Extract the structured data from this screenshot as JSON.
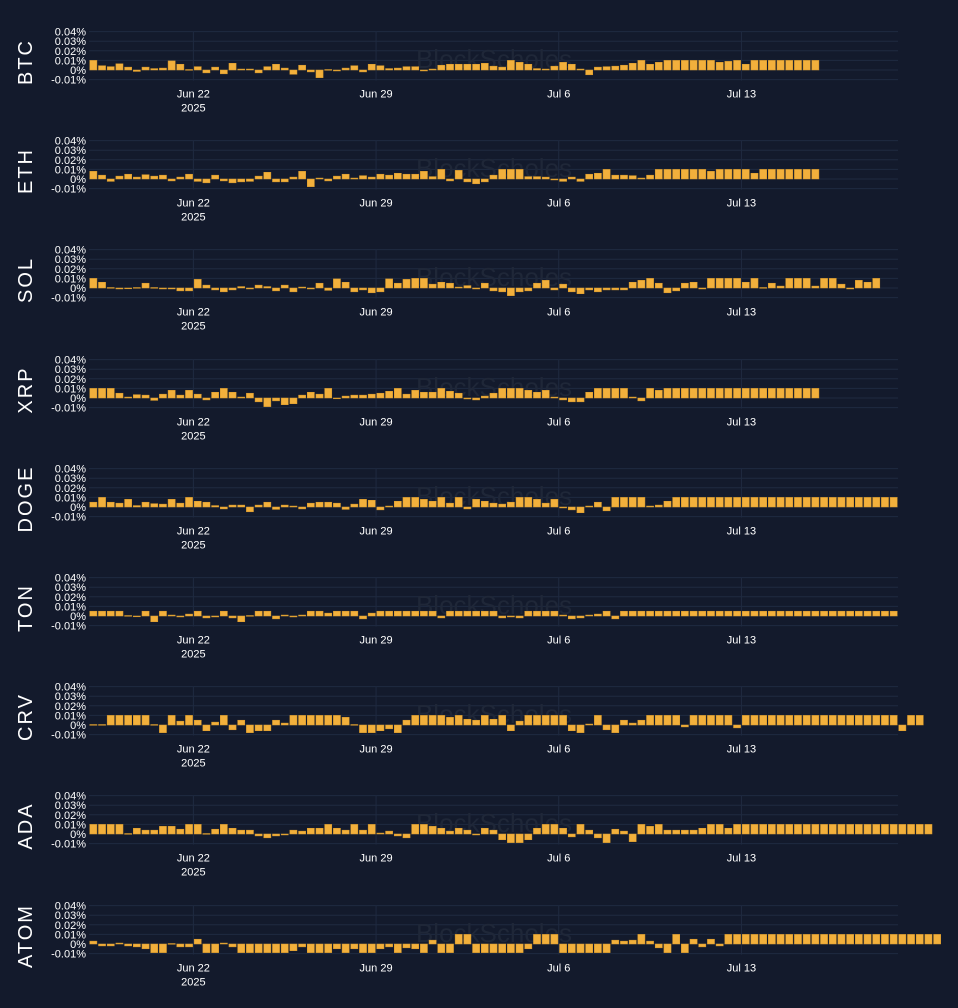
{
  "watermark": "BlockScholes",
  "colors": {
    "background": "#131a2c",
    "bar": "#f2b03c",
    "bar_edge": "#d99a2b",
    "grid": "#1f2a40",
    "text": "#ffffff"
  },
  "chart_data": {
    "type": "bar",
    "x_start": "2025-06-18",
    "x_step_hours": 8,
    "x_end": "2025-07-19",
    "x_ticks": [
      {
        "date": "2025-06-22",
        "label": "Jun 22",
        "sublabel": "2025"
      },
      {
        "date": "2025-06-29",
        "label": "Jun 29",
        "sublabel": ""
      },
      {
        "date": "2025-07-06",
        "label": "Jul 6",
        "sublabel": ""
      },
      {
        "date": "2025-07-13",
        "label": "Jul 13",
        "sublabel": ""
      }
    ],
    "y_ticks": [
      "0.04%",
      "0.03%",
      "0.02%",
      "0.01%",
      "0%",
      "-0.01%"
    ],
    "ylim": [
      -0.012,
      0.04
    ],
    "ylabel_unit": "%",
    "panels": [
      {
        "name": "BTC",
        "values": [
          0.01,
          0.0045,
          0.0035,
          0.0065,
          0.003,
          -0.0015,
          0.003,
          0.0015,
          0.002,
          0.0095,
          0.006,
          0.0005,
          0.0035,
          -0.003,
          0.003,
          -0.004,
          0.007,
          0.001,
          0.001,
          -0.003,
          0.0035,
          0.006,
          0.002,
          -0.0045,
          0.005,
          -0.002,
          -0.008,
          0.0005,
          -0.001,
          0.002,
          0.0045,
          -0.002,
          0.006,
          0.0045,
          0.0015,
          0.002,
          0.0035,
          0.0035,
          -0.001,
          0.001,
          0.005,
          0.006,
          0.006,
          0.006,
          0.006,
          0.007,
          0.004,
          0.003,
          0.01,
          0.008,
          0.006,
          0.0015,
          0.001,
          0.004,
          0.008,
          0.006,
          0.001,
          -0.005,
          0.003,
          0.0035,
          0.004,
          0.005,
          0.007,
          0.01,
          0.006,
          0.008,
          0.01,
          0.01,
          0.01,
          0.01,
          0.01,
          0.01,
          0.008,
          0.009,
          0.01,
          0.006,
          0.01,
          0.01,
          0.01,
          0.01,
          0.01,
          0.01,
          0.01,
          0.01
        ]
      },
      {
        "name": "ETH",
        "values": [
          0.008,
          0.004,
          -0.0025,
          0.003,
          0.005,
          0.002,
          0.0045,
          0.003,
          0.004,
          -0.002,
          0.002,
          0.005,
          -0.0025,
          -0.004,
          0.004,
          -0.002,
          -0.004,
          -0.003,
          -0.0025,
          0.003,
          0.007,
          -0.003,
          -0.003,
          0.002,
          0.008,
          -0.008,
          0.001,
          -0.002,
          0.003,
          0.005,
          0.001,
          0.0035,
          0.002,
          0.005,
          0.004,
          0.006,
          0.005,
          0.005,
          0.008,
          0.0025,
          0.01,
          -0.002,
          0.009,
          -0.003,
          -0.005,
          -0.003,
          0.004,
          0.01,
          0.01,
          0.01,
          0.0025,
          0.0025,
          0.002,
          -0.001,
          -0.0025,
          0.002,
          -0.0025,
          0.005,
          0.006,
          0.01,
          0.004,
          0.004,
          0.0035,
          0.001,
          0.004,
          0.01,
          0.01,
          0.01,
          0.01,
          0.01,
          0.01,
          0.008,
          0.01,
          0.01,
          0.01,
          0.01,
          0.006,
          0.01,
          0.01,
          0.01,
          0.01,
          0.01,
          0.01,
          0.01
        ]
      },
      {
        "name": "SOL",
        "values": [
          0.01,
          0.006,
          0.0005,
          -0.001,
          -0.0005,
          0.0005,
          0.005,
          0.0005,
          -0.001,
          -0.001,
          -0.003,
          -0.003,
          0.009,
          0.003,
          -0.002,
          -0.004,
          -0.002,
          0.0015,
          -0.001,
          0.003,
          0.0015,
          -0.003,
          0.003,
          -0.004,
          0.001,
          -0.001,
          0.005,
          -0.0025,
          0.0095,
          0.006,
          -0.004,
          -0.002,
          -0.005,
          -0.004,
          0.0095,
          0.005,
          0.009,
          0.01,
          0.01,
          0.004,
          0.006,
          0.005,
          0.001,
          0.0025,
          -0.001,
          0.005,
          -0.003,
          -0.004,
          -0.008,
          -0.004,
          -0.003,
          0.005,
          0.008,
          -0.002,
          0.004,
          -0.004,
          -0.006,
          -0.002,
          -0.004,
          -0.002,
          -0.002,
          -0.002,
          0.006,
          0.008,
          0.01,
          0.005,
          -0.005,
          -0.003,
          0.005,
          0.006,
          -0.001,
          0.01,
          0.01,
          0.01,
          0.01,
          0.006,
          0.01,
          0.0005,
          0.005,
          0.002,
          0.01,
          0.01,
          0.01,
          0.002,
          0.01,
          0.01,
          0.004,
          -0.001,
          0.008,
          0.006,
          0.01
        ]
      },
      {
        "name": "XRP",
        "values": [
          0.01,
          0.01,
          0.01,
          0.005,
          0.001,
          0.0035,
          0.003,
          -0.0025,
          0.004,
          0.008,
          0.003,
          0.008,
          0.004,
          -0.002,
          0.006,
          0.01,
          0.006,
          0.001,
          0.005,
          -0.004,
          -0.009,
          -0.003,
          -0.007,
          -0.006,
          0.003,
          0.006,
          0.004,
          0.01,
          -0.0005,
          0.002,
          0.003,
          0.003,
          0.004,
          0.005,
          0.007,
          0.01,
          0.004,
          0.008,
          0.006,
          0.006,
          0.01,
          0.007,
          0.005,
          -0.001,
          -0.002,
          0.002,
          0.005,
          0.01,
          0.01,
          0.01,
          0.008,
          0.006,
          0.008,
          0.001,
          -0.002,
          -0.004,
          -0.004,
          0.006,
          0.01,
          0.01,
          0.01,
          0.01,
          0.001,
          -0.003,
          0.01,
          0.008,
          0.01,
          0.01,
          0.01,
          0.01,
          0.01,
          0.01,
          0.01,
          0.01,
          0.01,
          0.01,
          0.01,
          0.01,
          0.01,
          0.01,
          0.01,
          0.01,
          0.01,
          0.01
        ]
      },
      {
        "name": "DOGE",
        "values": [
          0.005,
          0.01,
          0.005,
          0.004,
          0.008,
          0.0015,
          0.005,
          0.0035,
          0.003,
          0.008,
          0.004,
          0.01,
          0.006,
          0.005,
          0.0015,
          -0.002,
          0.002,
          0.002,
          -0.005,
          0.002,
          0.005,
          -0.0025,
          0.002,
          0.001,
          -0.002,
          0.004,
          0.005,
          0.005,
          0.004,
          -0.0025,
          0.003,
          0.008,
          0.007,
          -0.003,
          0.001,
          0.006,
          0.01,
          0.01,
          0.008,
          0.006,
          0.01,
          0.004,
          0.01,
          -0.002,
          0.008,
          0.006,
          0.004,
          0.003,
          0.005,
          0.01,
          0.01,
          0.008,
          0.004,
          0.008,
          -0.001,
          -0.003,
          -0.006,
          0.001,
          0.005,
          -0.004,
          0.01,
          0.01,
          0.01,
          0.01,
          0.001,
          0.002,
          0.006,
          0.01,
          0.01,
          0.01,
          0.01,
          0.01,
          0.01,
          0.01,
          0.01,
          0.01,
          0.01,
          0.01,
          0.01,
          0.01,
          0.01,
          0.01,
          0.01,
          0.01,
          0.01,
          0.01,
          0.01,
          0.01,
          0.01,
          0.01,
          0.01,
          0.01,
          0.01
        ]
      },
      {
        "name": "TON",
        "values": [
          0.005,
          0.005,
          0.005,
          0.005,
          0.0005,
          -0.0005,
          0.005,
          -0.006,
          0.005,
          0.001,
          -0.001,
          0.002,
          0.005,
          -0.002,
          -0.001,
          0.005,
          -0.002,
          -0.006,
          0.0005,
          0.005,
          0.005,
          -0.003,
          0.001,
          -0.001,
          0.001,
          0.005,
          0.005,
          0.003,
          0.005,
          0.005,
          0.005,
          -0.003,
          0.003,
          0.005,
          0.005,
          0.005,
          0.005,
          0.005,
          0.005,
          0.005,
          -0.002,
          0.005,
          0.005,
          0.005,
          0.005,
          0.005,
          0.005,
          -0.002,
          -0.001,
          -0.002,
          0.005,
          0.005,
          0.005,
          0.005,
          0.001,
          -0.003,
          -0.002,
          0.001,
          0.002,
          0.005,
          -0.003,
          0.005,
          0.005,
          0.005,
          0.005,
          0.005,
          0.005,
          0.005,
          0.005,
          0.005,
          0.005,
          0.005,
          0.005,
          0.005,
          0.005,
          0.005,
          0.005,
          0.005,
          0.005,
          0.005,
          0.005,
          0.005,
          0.005,
          0.005,
          0.005,
          0.005,
          0.005,
          0.005,
          0.005,
          0.005,
          0.005,
          0.005,
          0.005
        ]
      },
      {
        "name": "CRV",
        "values": [
          0.0005,
          0.0005,
          0.01,
          0.01,
          0.01,
          0.01,
          0.01,
          0.0005,
          -0.008,
          0.01,
          0.004,
          0.01,
          0.005,
          -0.006,
          0.003,
          0.01,
          -0.005,
          0.005,
          -0.008,
          -0.006,
          -0.006,
          0.005,
          0.002,
          0.01,
          0.01,
          0.01,
          0.01,
          0.01,
          0.01,
          0.008,
          0.0005,
          -0.008,
          -0.008,
          -0.006,
          -0.004,
          -0.008,
          0.005,
          0.01,
          0.01,
          0.01,
          0.01,
          0.008,
          0.01,
          0.006,
          0.005,
          0.01,
          0.006,
          0.01,
          -0.006,
          0.004,
          0.01,
          0.01,
          0.01,
          0.01,
          0.01,
          -0.006,
          -0.008,
          0.001,
          0.01,
          -0.005,
          -0.008,
          0.005,
          0.002,
          0.005,
          0.01,
          0.01,
          0.01,
          0.01,
          -0.002,
          0.01,
          0.01,
          0.01,
          0.01,
          0.01,
          -0.003,
          0.01,
          0.01,
          0.01,
          0.01,
          0.01,
          0.01,
          0.01,
          0.01,
          0.01,
          0.01,
          0.01,
          0.01,
          0.01,
          0.01,
          0.01,
          0.01,
          0.01,
          0.01,
          -0.006,
          0.01,
          0.01
        ]
      },
      {
        "name": "ADA",
        "values": [
          0.01,
          0.01,
          0.01,
          0.01,
          0.0005,
          0.006,
          0.004,
          0.004,
          0.008,
          0.008,
          0.005,
          0.01,
          0.01,
          0.0005,
          0.005,
          0.01,
          0.006,
          0.004,
          0.004,
          -0.002,
          -0.004,
          -0.002,
          -0.001,
          0.004,
          0.003,
          0.006,
          0.006,
          0.01,
          0.006,
          0.004,
          0.01,
          0.004,
          0.01,
          0.001,
          0.003,
          -0.002,
          -0.004,
          0.01,
          0.01,
          0.008,
          0.006,
          0.003,
          0.006,
          0.004,
          -0.001,
          0.006,
          0.004,
          -0.006,
          -0.009,
          -0.009,
          -0.006,
          0.006,
          0.01,
          0.01,
          0.006,
          -0.003,
          0.01,
          0.004,
          -0.004,
          -0.009,
          0.005,
          0.003,
          -0.008,
          0.01,
          0.008,
          0.01,
          0.004,
          0.004,
          0.004,
          0.004,
          0.006,
          0.01,
          0.01,
          0.006,
          0.01,
          0.01,
          0.01,
          0.01,
          0.01,
          0.01,
          0.01,
          0.01,
          0.01,
          0.01,
          0.01,
          0.01,
          0.01,
          0.01,
          0.01,
          0.01,
          0.01,
          0.01,
          0.01,
          0.01,
          0.01,
          0.01,
          0.01
        ]
      },
      {
        "name": "ATOM",
        "values": [
          0.003,
          -0.002,
          -0.002,
          0.001,
          -0.002,
          -0.003,
          -0.005,
          -0.009,
          -0.009,
          0.0005,
          -0.003,
          -0.003,
          0.005,
          -0.009,
          -0.009,
          0.001,
          -0.003,
          -0.009,
          -0.009,
          -0.009,
          -0.009,
          -0.009,
          -0.009,
          -0.007,
          -0.003,
          -0.009,
          -0.009,
          -0.009,
          -0.005,
          -0.009,
          -0.005,
          -0.009,
          -0.009,
          -0.005,
          -0.003,
          -0.009,
          -0.004,
          -0.005,
          -0.009,
          0.004,
          -0.009,
          -0.009,
          0.01,
          0.01,
          -0.009,
          -0.009,
          -0.009,
          -0.009,
          -0.009,
          -0.009,
          -0.005,
          0.01,
          0.01,
          0.01,
          -0.009,
          -0.009,
          -0.009,
          -0.009,
          -0.009,
          -0.009,
          0.004,
          0.003,
          0.004,
          0.01,
          0.003,
          -0.004,
          -0.009,
          0.01,
          -0.009,
          0.005,
          -0.003,
          0.005,
          -0.002,
          0.01,
          0.01,
          0.01,
          0.01,
          0.01,
          0.01,
          0.01,
          0.01,
          0.01,
          0.01,
          0.01,
          0.01,
          0.01,
          0.01,
          0.01,
          0.01,
          0.01,
          0.01,
          0.01,
          0.01,
          0.01,
          0.01,
          0.01,
          0.01,
          0.01
        ]
      }
    ]
  }
}
